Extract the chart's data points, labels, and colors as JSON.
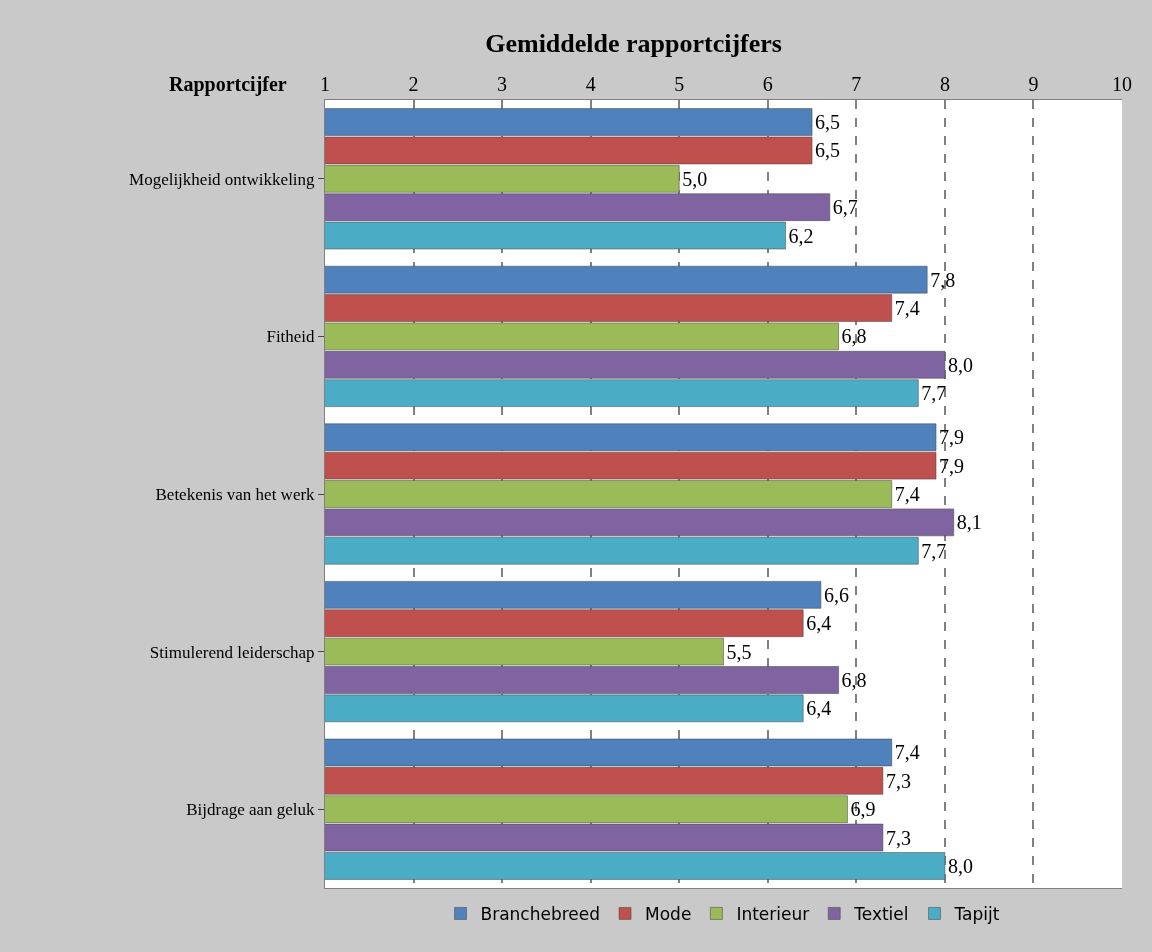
{
  "chart_data": {
    "type": "bar",
    "orientation": "horizontal",
    "title": "Gemiddelde rapportcijfers",
    "xlabel": "Rapportcijfer",
    "categories": [
      "Mogelijkheid ontwikkeling",
      "Fitheid",
      "Betekenis van het werk",
      "Stimulerend leiderschap",
      "Bijdrage aan geluk"
    ],
    "series": [
      {
        "name": "Branchebreed",
        "color": "#4f81bd",
        "values": [
          6.5,
          7.8,
          7.9,
          6.6,
          7.4
        ],
        "value_labels": [
          "6,5",
          "7,8",
          "7,9",
          "6,6",
          "7,4"
        ]
      },
      {
        "name": "Mode",
        "color": "#c0504d",
        "values": [
          6.5,
          7.4,
          7.9,
          6.4,
          7.3
        ],
        "value_labels": [
          "6,5",
          "7,4",
          "7,9",
          "6,4",
          "7,3"
        ]
      },
      {
        "name": "Interieur",
        "color": "#9bbb59",
        "values": [
          5.0,
          6.8,
          7.4,
          5.5,
          6.9
        ],
        "value_labels": [
          "5,0",
          "6,8",
          "7,4",
          "5,5",
          "6,9"
        ]
      },
      {
        "name": "Textiel",
        "color": "#8064a2",
        "values": [
          6.7,
          8.0,
          8.1,
          6.8,
          7.3
        ],
        "value_labels": [
          "6,7",
          "8,0",
          "8,1",
          "6,8",
          "7,3"
        ]
      },
      {
        "name": "Tapijt",
        "color": "#4bacc6",
        "values": [
          6.2,
          7.7,
          7.7,
          6.4,
          8.0
        ],
        "value_labels": [
          "6,2",
          "7,7",
          "7,7",
          "6,4",
          "8,0"
        ]
      }
    ],
    "xlim": [
      1,
      10
    ],
    "xticks": [
      1,
      2,
      3,
      4,
      5,
      6,
      7,
      8,
      9,
      10
    ],
    "grid": "x",
    "line_style": "dashed",
    "legend": "bottom"
  }
}
